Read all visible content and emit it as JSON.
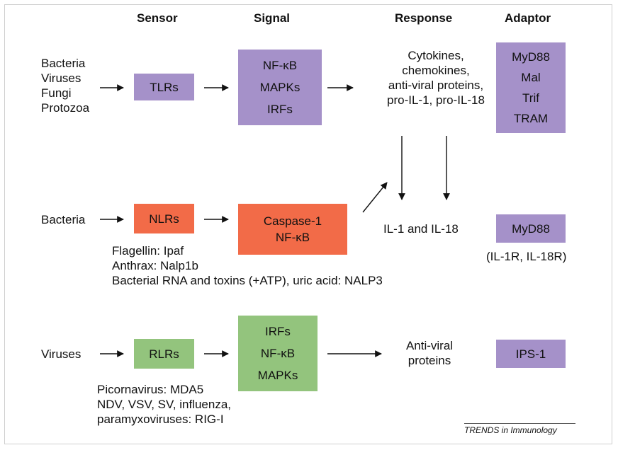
{
  "headers": {
    "sensor": "Sensor",
    "signal": "Signal",
    "response": "Response",
    "adaptor": "Adaptor"
  },
  "row1": {
    "pathogens": [
      "Bacteria",
      "Viruses",
      "Fungi",
      "Protozoa"
    ],
    "sensor": "TLRs",
    "signals": [
      "NF-κB",
      "MAPKs",
      "IRFs"
    ],
    "response": [
      "Cytokines,",
      "chemokines,",
      "anti-viral proteins,",
      "pro-IL-1, pro-IL-18"
    ],
    "adaptors": [
      "MyD88",
      "Mal",
      "Trif",
      "TRAM"
    ]
  },
  "row2": {
    "pathogen": "Bacteria",
    "sensor": "NLRs",
    "signals": [
      "Caspase-1",
      "NF-κB"
    ],
    "response": "IL-1 and IL-18",
    "adaptor": "MyD88",
    "adaptor_note": "(IL-1R, IL-18R)",
    "ligands": [
      "Flagellin: Ipaf",
      "Anthrax: Nalp1b",
      "Bacterial RNA and toxins (+ATP), uric acid: NALP3"
    ]
  },
  "row3": {
    "pathogen": "Viruses",
    "sensor": "RLRs",
    "signals": [
      "IRFs",
      "NF-κB",
      "MAPKs"
    ],
    "response": [
      "Anti-viral",
      "proteins"
    ],
    "adaptor": "IPS-1",
    "ligands": [
      "Picornavirus: MDA5",
      "NDV, VSV, SV, influenza,",
      "paramyxoviruses: RIG-I"
    ]
  },
  "footer": "TRENDS in Immunology",
  "colors": {
    "purple": "#a591c9",
    "red": "#f26b48",
    "green": "#93c47d"
  }
}
